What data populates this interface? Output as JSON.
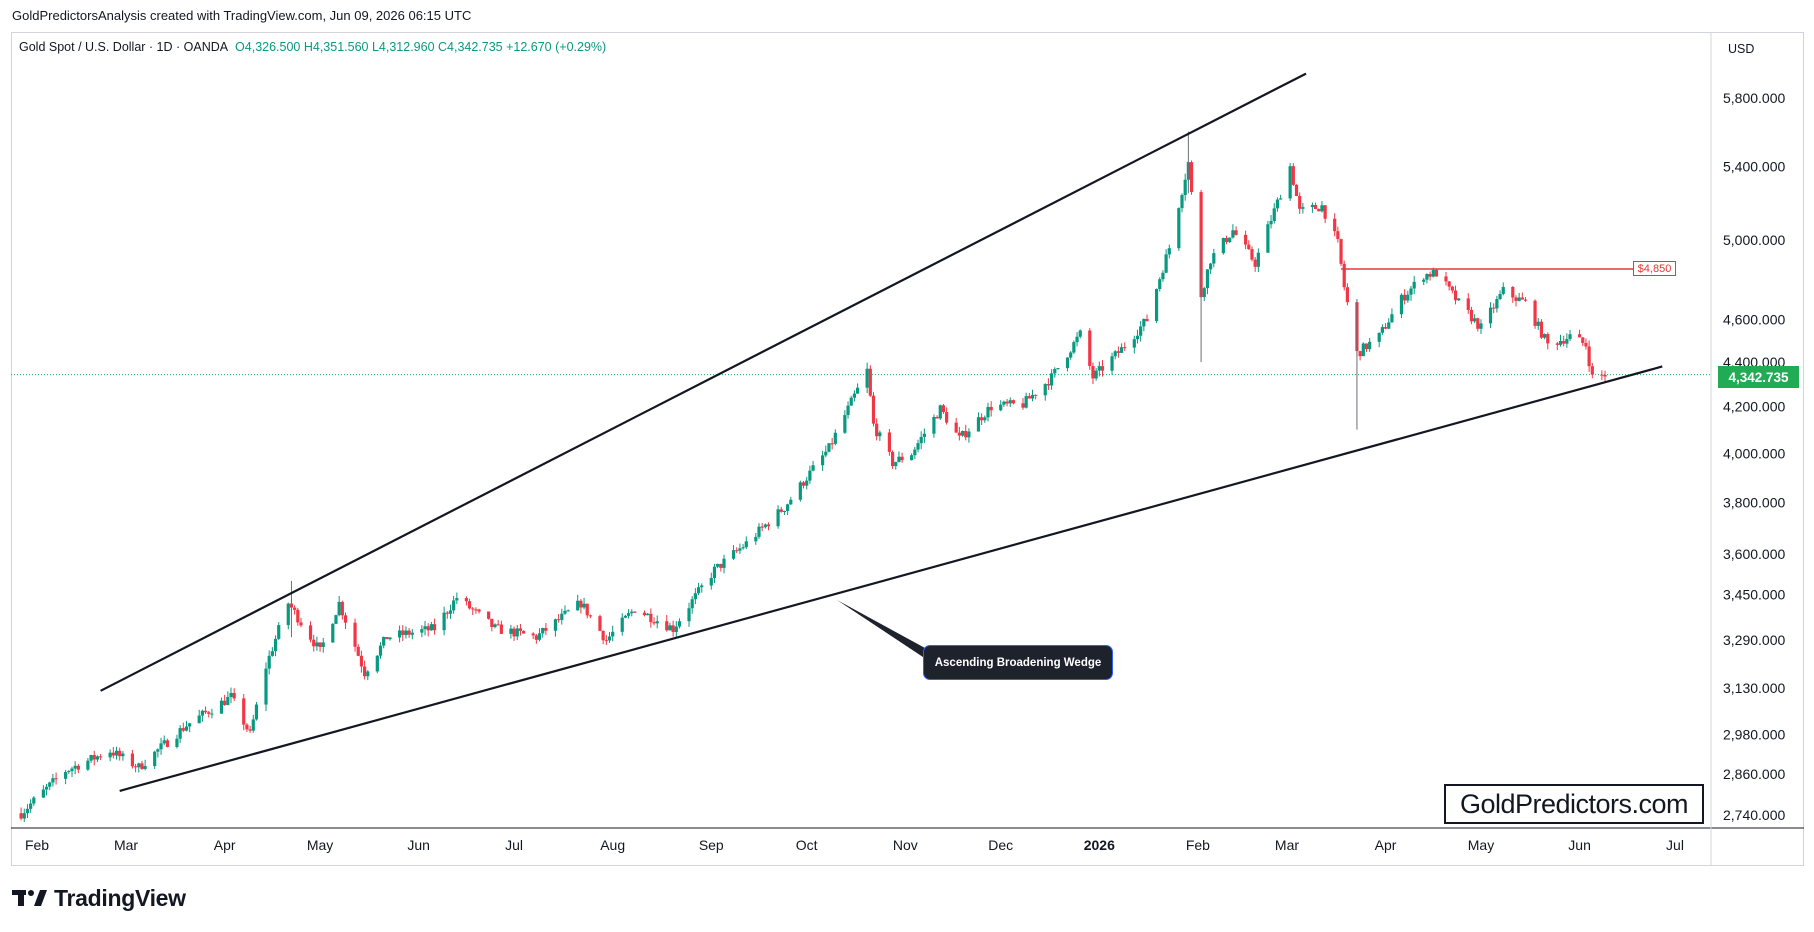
{
  "header": {
    "attribution": "GoldPredictorsAnalysis created with TradingView.com, Jun 09, 2026 06:15 UTC",
    "symbol": "Gold Spot / U.S. Dollar · 1D · OANDA",
    "ohlc": "O4,326.500  H4,351.560  L4,312.960  C4,342.735  +12.670 (+0.29%)"
  },
  "price_axis": {
    "currency": "USD",
    "last_price_label": "4,342.735",
    "level_label": "$4,850"
  },
  "annotation": {
    "callout_text": "Ascending Broadening Wedge"
  },
  "branding": {
    "watermark": "GoldPredictors.com",
    "logo_text": "TradingView"
  },
  "colors": {
    "up": "#089981",
    "down": "#f23645",
    "last_price": "#22ab55",
    "level_line": "#e53935",
    "trendline": "#131722",
    "callout_bg": "#1e222d"
  },
  "chart_data": {
    "type": "candlestick",
    "series_name": "Gold Spot / U.S. Dollar",
    "interval": "1D",
    "y_scale": "log",
    "ylim": [
      2700,
      6000
    ],
    "x_range": [
      "2025-01-27",
      "2026-07-06"
    ],
    "y_ticks": [
      5800,
      5400,
      5000,
      4600,
      4400,
      4200,
      4000,
      3800,
      3600,
      3450,
      3290,
      3130,
      2980,
      2860,
      2740
    ],
    "y_tick_labels": [
      "5,800.000",
      "5,400.000",
      "5,000.000",
      "4,600.000",
      "4,400.000",
      "4,200.000",
      "4,000.000",
      "3,800.000",
      "3,600.000",
      "3,450.000",
      "3,290.000",
      "3,130.000",
      "2,980.000",
      "2,860.000",
      "2,740.000"
    ],
    "x_ticks": [
      {
        "label": "Feb",
        "date": "2025-02-01"
      },
      {
        "label": "Mar",
        "date": "2025-03-01"
      },
      {
        "label": "Apr",
        "date": "2025-04-01"
      },
      {
        "label": "May",
        "date": "2025-05-01"
      },
      {
        "label": "Jun",
        "date": "2025-06-01"
      },
      {
        "label": "Jul",
        "date": "2025-07-01"
      },
      {
        "label": "Aug",
        "date": "2025-08-01"
      },
      {
        "label": "Sep",
        "date": "2025-09-01"
      },
      {
        "label": "Oct",
        "date": "2025-10-01"
      },
      {
        "label": "Nov",
        "date": "2025-11-01"
      },
      {
        "label": "Dec",
        "date": "2025-12-01"
      },
      {
        "label": "2026",
        "date": "2026-01-01",
        "bold": true
      },
      {
        "label": "Feb",
        "date": "2026-02-01"
      },
      {
        "label": "Mar",
        "date": "2026-03-01"
      },
      {
        "label": "Apr",
        "date": "2026-04-01"
      },
      {
        "label": "May",
        "date": "2026-05-01"
      },
      {
        "label": "Jun",
        "date": "2026-06-01"
      },
      {
        "label": "Jul",
        "date": "2026-07-01"
      }
    ],
    "anchors": [
      {
        "date": "2025-01-27",
        "price": 2745
      },
      {
        "date": "2025-02-10",
        "price": 2870
      },
      {
        "date": "2025-02-24",
        "price": 2930
      },
      {
        "date": "2025-03-05",
        "price": 2880
      },
      {
        "date": "2025-03-20",
        "price": 3010
      },
      {
        "date": "2025-04-03",
        "price": 3100
      },
      {
        "date": "2025-04-09",
        "price": 2980
      },
      {
        "date": "2025-04-14",
        "price": 3200
      },
      {
        "date": "2025-04-21",
        "price": 3420
      },
      {
        "date": "2025-05-01",
        "price": 3250
      },
      {
        "date": "2025-05-07",
        "price": 3420
      },
      {
        "date": "2025-05-15",
        "price": 3180
      },
      {
        "date": "2025-05-22",
        "price": 3300
      },
      {
        "date": "2025-06-06",
        "price": 3330
      },
      {
        "date": "2025-06-13",
        "price": 3440
      },
      {
        "date": "2025-06-25",
        "price": 3330
      },
      {
        "date": "2025-07-08",
        "price": 3300
      },
      {
        "date": "2025-07-22",
        "price": 3420
      },
      {
        "date": "2025-07-30",
        "price": 3290
      },
      {
        "date": "2025-08-08",
        "price": 3400
      },
      {
        "date": "2025-08-20",
        "price": 3330
      },
      {
        "date": "2025-09-02",
        "price": 3540
      },
      {
        "date": "2025-09-12",
        "price": 3640
      },
      {
        "date": "2025-09-24",
        "price": 3780
      },
      {
        "date": "2025-10-08",
        "price": 4020
      },
      {
        "date": "2025-10-20",
        "price": 4360
      },
      {
        "date": "2025-10-22",
        "price": 4120
      },
      {
        "date": "2025-10-28",
        "price": 3960
      },
      {
        "date": "2025-11-03",
        "price": 4000
      },
      {
        "date": "2025-11-12",
        "price": 4190
      },
      {
        "date": "2025-11-18",
        "price": 4060
      },
      {
        "date": "2025-11-28",
        "price": 4200
      },
      {
        "date": "2025-12-08",
        "price": 4210
      },
      {
        "date": "2025-12-17",
        "price": 4330
      },
      {
        "date": "2025-12-26",
        "price": 4530
      },
      {
        "date": "2025-12-30",
        "price": 4330
      },
      {
        "date": "2026-01-08",
        "price": 4460
      },
      {
        "date": "2026-01-16",
        "price": 4600
      },
      {
        "date": "2026-01-23",
        "price": 4960
      },
      {
        "date": "2026-01-29",
        "price": 5420
      },
      {
        "date": "2026-02-02",
        "price": 4720
      },
      {
        "date": "2026-02-05",
        "price": 4900
      },
      {
        "date": "2026-02-12",
        "price": 5050
      },
      {
        "date": "2026-02-19",
        "price": 4880
      },
      {
        "date": "2026-02-26",
        "price": 5200
      },
      {
        "date": "2026-03-02",
        "price": 5400
      },
      {
        "date": "2026-03-05",
        "price": 5150
      },
      {
        "date": "2026-03-12",
        "price": 5180
      },
      {
        "date": "2026-03-17",
        "price": 4980
      },
      {
        "date": "2026-03-19",
        "price": 4760
      },
      {
        "date": "2026-03-23",
        "price": 4440
      },
      {
        "date": "2026-03-30",
        "price": 4520
      },
      {
        "date": "2026-04-06",
        "price": 4700
      },
      {
        "date": "2026-04-13",
        "price": 4820
      },
      {
        "date": "2026-04-17",
        "price": 4830
      },
      {
        "date": "2026-04-24",
        "price": 4680
      },
      {
        "date": "2026-05-01",
        "price": 4560
      },
      {
        "date": "2026-05-08",
        "price": 4740
      },
      {
        "date": "2026-05-15",
        "price": 4680
      },
      {
        "date": "2026-05-22",
        "price": 4480
      },
      {
        "date": "2026-05-29",
        "price": 4520
      },
      {
        "date": "2026-06-03",
        "price": 4480
      },
      {
        "date": "2026-06-05",
        "price": 4330
      },
      {
        "date": "2026-06-09",
        "price": 4342.735
      }
    ],
    "level_line": {
      "price": 4850,
      "from": "2026-03-18",
      "to": "2026-06-27"
    },
    "trendlines": [
      {
        "name": "upper",
        "from": {
          "date": "2025-02-21",
          "price": 3120
        },
        "to": {
          "date": "2026-03-07",
          "price": 5950
        }
      },
      {
        "name": "lower",
        "from": {
          "date": "2025-02-27",
          "price": 2810
        },
        "to": {
          "date": "2026-06-27",
          "price": 4380
        }
      }
    ],
    "last_price": 4342.735
  }
}
